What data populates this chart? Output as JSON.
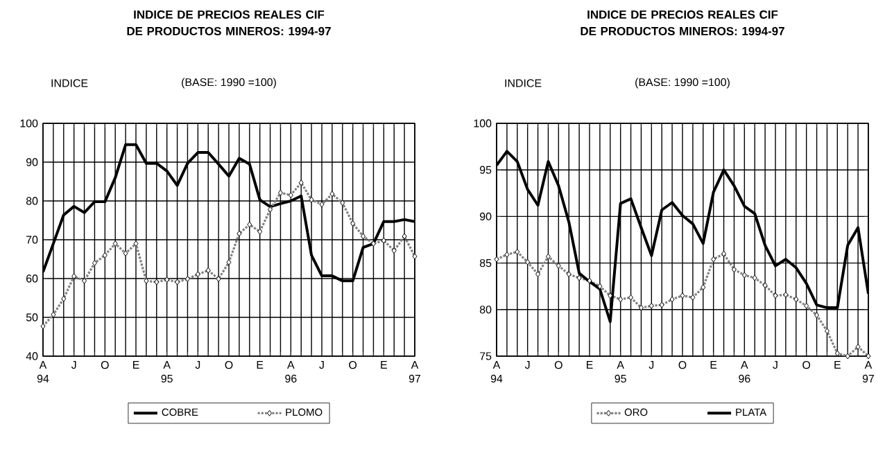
{
  "chart_data": [
    {
      "type": "line",
      "title": "INDICE DE PRECIOS REALES CIF DE PRODUCTOS MINEROS: 1994-97",
      "subtitle": "(BASE: 1990 =100)",
      "ylabel": "INDICE",
      "categories": [
        "A 94",
        null,
        null,
        "J",
        null,
        null,
        "O",
        null,
        null,
        "E",
        null,
        null,
        "A 95",
        null,
        null,
        "J",
        null,
        null,
        "O",
        null,
        null,
        "E",
        null,
        null,
        "A 96",
        null,
        null,
        "J",
        null,
        null,
        "O",
        null,
        null,
        "E",
        null,
        null,
        "A 97"
      ],
      "series": [
        {
          "name": "COBRE",
          "color": "#000000",
          "marker": "none",
          "line_style": "solid",
          "values": [
            61.7,
            69,
            76.4,
            78.6,
            77,
            79.8,
            79.8,
            86,
            94.5,
            94.5,
            89.7,
            89.7,
            87.7,
            84,
            89.7,
            92.5,
            92.5,
            89.5,
            86.4,
            91,
            89.5,
            80.3,
            78.5,
            79.3,
            80,
            81.3,
            66,
            60.7,
            60.7,
            59.4,
            59.4,
            68,
            69,
            74.7,
            74.7,
            75.2,
            74.7
          ]
        },
        {
          "name": "PLOMO",
          "color": "#808080",
          "marker": "diamond",
          "line_style": "dotted",
          "values": [
            47.7,
            50.7,
            54.8,
            60.6,
            59.4,
            64,
            66,
            69,
            66.5,
            69,
            59.4,
            59.1,
            59.7,
            59.1,
            59.9,
            61.1,
            62.1,
            59.9,
            64.2,
            71.6,
            73.9,
            72.1,
            77.8,
            82.1,
            81.5,
            84.7,
            80.3,
            79.1,
            81.8,
            79.5,
            74.2,
            70.9,
            69,
            69.8,
            67.2,
            70.9,
            65.7
          ]
        }
      ],
      "ylim": [
        40,
        100
      ],
      "yticks": [
        40,
        50,
        60,
        70,
        80,
        90,
        100
      ],
      "grid": true,
      "legend": "bottom"
    },
    {
      "type": "line",
      "title": "INDICE DE PRECIOS REALES CIF DE PRODUCTOS MINEROS: 1994-97",
      "subtitle": "(BASE: 1990 =100)",
      "ylabel": "INDICE",
      "categories": [
        "A 94",
        null,
        null,
        "J",
        null,
        null,
        "O",
        null,
        null,
        "E",
        null,
        null,
        "A 95",
        null,
        null,
        "J",
        null,
        null,
        "O",
        null,
        null,
        "E",
        null,
        null,
        "A 96",
        null,
        null,
        "J",
        null,
        null,
        "O",
        null,
        null,
        "E",
        null,
        null,
        "A 97"
      ],
      "series": [
        {
          "name": "ORO",
          "color": "#808080",
          "marker": "diamond",
          "line_style": "dotted",
          "values": [
            85.4,
            85.9,
            86.2,
            85.1,
            83.8,
            85.7,
            84.7,
            83.8,
            83.4,
            83.1,
            82.5,
            81.5,
            81.1,
            81.3,
            80.2,
            80.4,
            80.5,
            81.1,
            81.5,
            81.3,
            82.4,
            85.4,
            86,
            84.3,
            83.7,
            83.4,
            82.6,
            81.5,
            81.6,
            81.1,
            80.4,
            79.4,
            77.7,
            75.3,
            75,
            76,
            75
          ]
        },
        {
          "name": "PLATA",
          "color": "#000000",
          "marker": "none",
          "line_style": "solid",
          "values": [
            95.5,
            97,
            95.9,
            92.9,
            91.2,
            95.9,
            93.3,
            89.4,
            83.9,
            83,
            82.2,
            78.7,
            91.4,
            91.9,
            88.8,
            85.8,
            90.7,
            91.5,
            90.1,
            89.2,
            87.1,
            92.6,
            95,
            93.3,
            91.1,
            90.3,
            86.9,
            84.7,
            85.4,
            84.5,
            82.8,
            80.5,
            80.2,
            80.2,
            86.9,
            88.8,
            81.7
          ]
        }
      ],
      "ylim": [
        75,
        100
      ],
      "yticks": [
        75,
        80,
        85,
        90,
        95,
        100
      ],
      "grid": true,
      "legend": "bottom"
    }
  ]
}
